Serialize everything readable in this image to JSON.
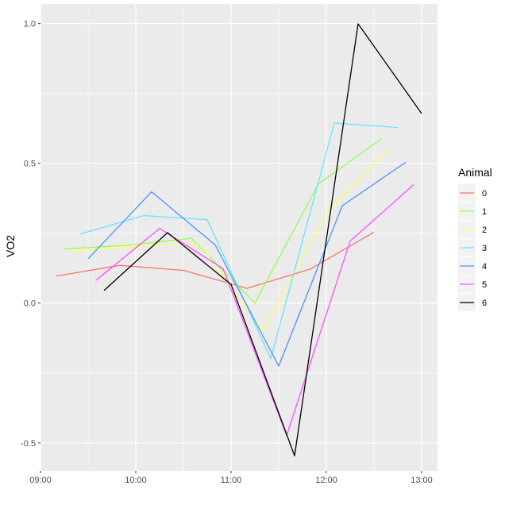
{
  "chart_data": {
    "type": "line",
    "title": "",
    "xlabel": "",
    "ylabel": "VO2",
    "x_ticks": [
      "09:00",
      "10:00",
      "11:00",
      "12:00",
      "13:00"
    ],
    "y_ticks": [
      -0.5,
      0.0,
      0.5,
      1.0
    ],
    "y_tick_labels": [
      "-0.5",
      "0.0",
      "0.5",
      "1.0"
    ],
    "xlim": [
      "09:00",
      "13:10"
    ],
    "ylim": [
      -0.6,
      1.07
    ],
    "grid": true,
    "legend": {
      "title": "Animal",
      "position": "right"
    },
    "series": [
      {
        "name": "0",
        "color": "#F8766D",
        "x": [
          "09:10",
          "09:50",
          "10:30",
          "11:10",
          "11:50",
          "12:30"
        ],
        "y": [
          0.097,
          0.135,
          0.117,
          0.053,
          0.122,
          0.254
        ]
      },
      {
        "name": "1",
        "color": "#93FF4D",
        "x": [
          "09:15",
          "09:55",
          "10:35",
          "11:15",
          "11:55",
          "12:35"
        ],
        "y": [
          0.194,
          0.207,
          0.232,
          0.0,
          0.426,
          0.589
        ]
      },
      {
        "name": "2",
        "color": "#FFFF66",
        "x": [
          "09:20",
          "10:00",
          "10:40",
          "11:20",
          "12:00",
          "12:40"
        ],
        "y": [
          0.186,
          0.203,
          0.213,
          -0.1,
          0.321,
          0.552
        ]
      },
      {
        "name": "3",
        "color": "#66E5FF",
        "x": [
          "09:25",
          "10:05",
          "10:45",
          "11:25",
          "12:05",
          "12:45"
        ],
        "y": [
          0.247,
          0.313,
          0.298,
          -0.198,
          0.644,
          0.628
        ]
      },
      {
        "name": "4",
        "color": "#4D94FF",
        "x": [
          "09:30",
          "10:10",
          "10:50",
          "11:30",
          "12:10",
          "12:50"
        ],
        "y": [
          0.159,
          0.398,
          0.208,
          -0.225,
          0.348,
          0.504
        ]
      },
      {
        "name": "5",
        "color": "#FF4DFF",
        "x": [
          "09:35",
          "10:15",
          "10:55",
          "11:35",
          "12:15",
          "12:55"
        ],
        "y": [
          0.082,
          0.267,
          0.123,
          -0.474,
          0.222,
          0.424
        ]
      },
      {
        "name": "6",
        "color": "#000000",
        "x": [
          "09:40",
          "10:20",
          "11:00",
          "11:40",
          "12:20",
          "13:00"
        ],
        "y": [
          0.045,
          0.252,
          0.067,
          -0.546,
          0.999,
          0.678
        ]
      }
    ]
  }
}
